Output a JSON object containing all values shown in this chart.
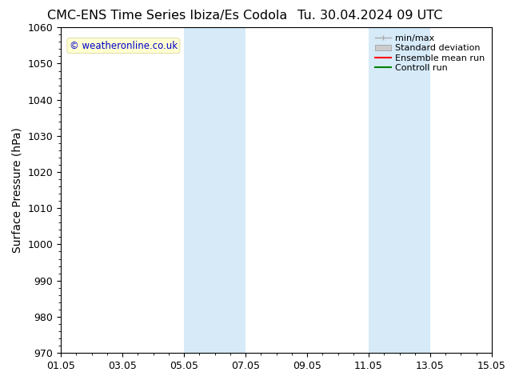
{
  "title_left": "CMC-ENS Time Series Ibiza/Es Codola",
  "title_right": "Tu. 30.04.2024 09 UTC",
  "ylabel": "Surface Pressure (hPa)",
  "ylim": [
    970,
    1060
  ],
  "yticks": [
    970,
    980,
    990,
    1000,
    1010,
    1020,
    1030,
    1040,
    1050,
    1060
  ],
  "xlim": [
    0,
    14
  ],
  "xtick_labels": [
    "01.05",
    "03.05",
    "05.05",
    "07.05",
    "09.05",
    "11.05",
    "13.05",
    "15.05"
  ],
  "xtick_positions": [
    0,
    2,
    4,
    6,
    8,
    10,
    12,
    14
  ],
  "shaded_regions": [
    {
      "x_start": 4,
      "x_end": 6,
      "color": "#d6eaf8"
    },
    {
      "x_start": 10,
      "x_end": 12,
      "color": "#d6eaf8"
    }
  ],
  "watermark_text": "© weatheronline.co.uk",
  "watermark_color": "#0000cc",
  "legend_entries": [
    {
      "label": "min/max",
      "color": "#aaaaaa"
    },
    {
      "label": "Standard deviation",
      "color": "#cccccc"
    },
    {
      "label": "Ensemble mean run",
      "color": "#ff0000"
    },
    {
      "label": "Controll run",
      "color": "#008000"
    }
  ],
  "bg_color": "#ffffff",
  "border_color": "#000000",
  "title_fontsize": 11.5,
  "axis_label_fontsize": 10,
  "tick_fontsize": 9,
  "legend_fontsize": 8
}
